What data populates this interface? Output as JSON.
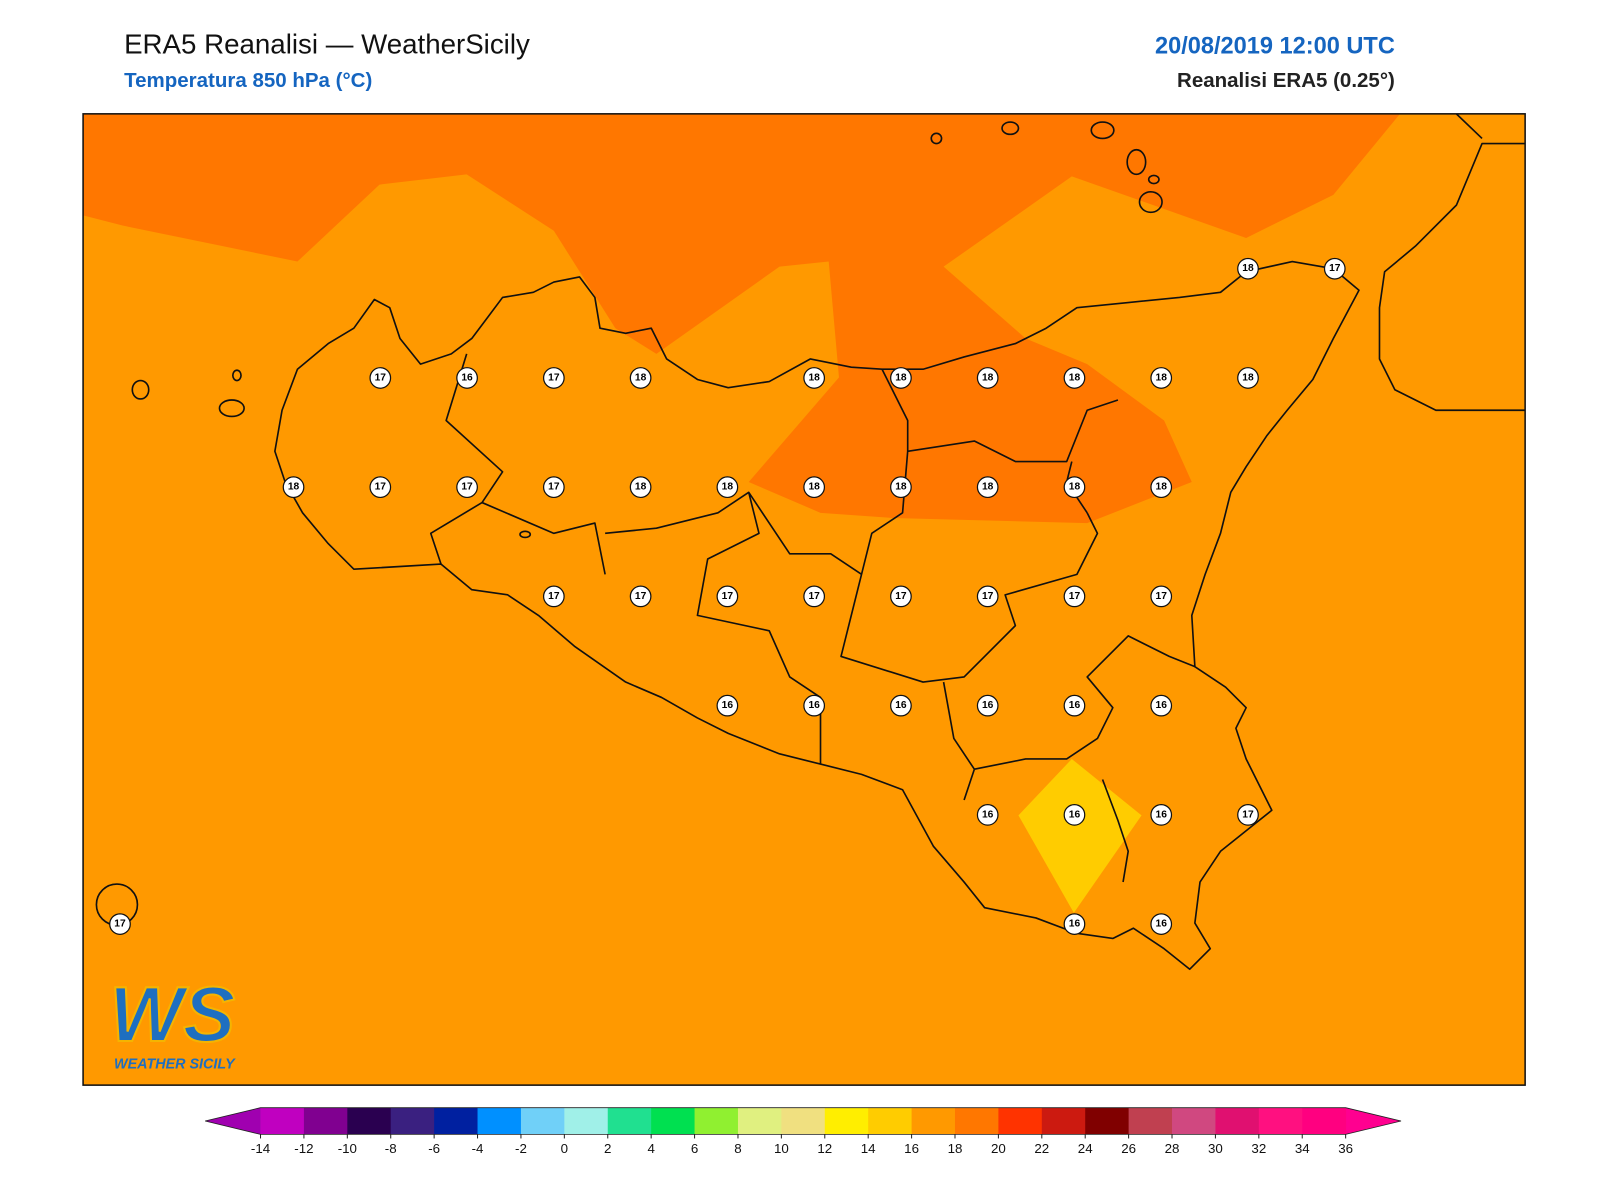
{
  "header": {
    "title": "ERA5 Reanalisi — WeatherSicily",
    "subtitle": "Temperatura 850 hPa (°C)",
    "date": "20/08/2019 12:00 UTC",
    "source": "Reanalisi ERA5 (0.25°)"
  },
  "stations": {
    "rows": [
      [
        null,
        null,
        null,
        null,
        null,
        null,
        null,
        null,
        null,
        null,
        null,
        null,
        null,
        18,
        17
      ],
      [
        null,
        null,
        null,
        17,
        16,
        17,
        18,
        null,
        18,
        18,
        18,
        18,
        18,
        18,
        null
      ],
      [
        null,
        null,
        18,
        17,
        17,
        17,
        18,
        18,
        18,
        18,
        18,
        18,
        18,
        null,
        null
      ],
      [
        null,
        null,
        null,
        null,
        null,
        17,
        17,
        17,
        17,
        17,
        17,
        17,
        17,
        null,
        null
      ],
      [
        null,
        null,
        null,
        null,
        null,
        null,
        null,
        16,
        16,
        16,
        16,
        16,
        16,
        null,
        null
      ],
      [
        null,
        null,
        null,
        null,
        null,
        null,
        null,
        null,
        null,
        null,
        16,
        16,
        16,
        17,
        null
      ],
      [
        17,
        null,
        null,
        null,
        null,
        null,
        null,
        null,
        null,
        null,
        null,
        16,
        16,
        null,
        null
      ]
    ]
  },
  "colorbar": {
    "ticks": [
      -14,
      -12,
      -10,
      -8,
      -6,
      -4,
      -2,
      0,
      2,
      4,
      6,
      8,
      10,
      12,
      14,
      16,
      18,
      20,
      22,
      24,
      26,
      28,
      30,
      32,
      34,
      36
    ],
    "colors": [
      "#c000c0",
      "#800090",
      "#2a0050",
      "#3a2080",
      "#0020a0",
      "#0090ff",
      "#70d0f8",
      "#a0f0e8",
      "#20e090",
      "#00e050",
      "#90f030",
      "#e0f080",
      "#f0e080",
      "#ffee00",
      "#ffcc00",
      "#ff9900",
      "#ff7700",
      "#ff3300",
      "#cc1a10",
      "#800000",
      "#c04050",
      "#d04880",
      "#e01070",
      "#ff1080",
      "#ff0080"
    ],
    "under_color": "#a000b0",
    "over_color": "#ff0090"
  },
  "logo": {
    "mark": "WS",
    "name": "WEATHER SICILY"
  }
}
